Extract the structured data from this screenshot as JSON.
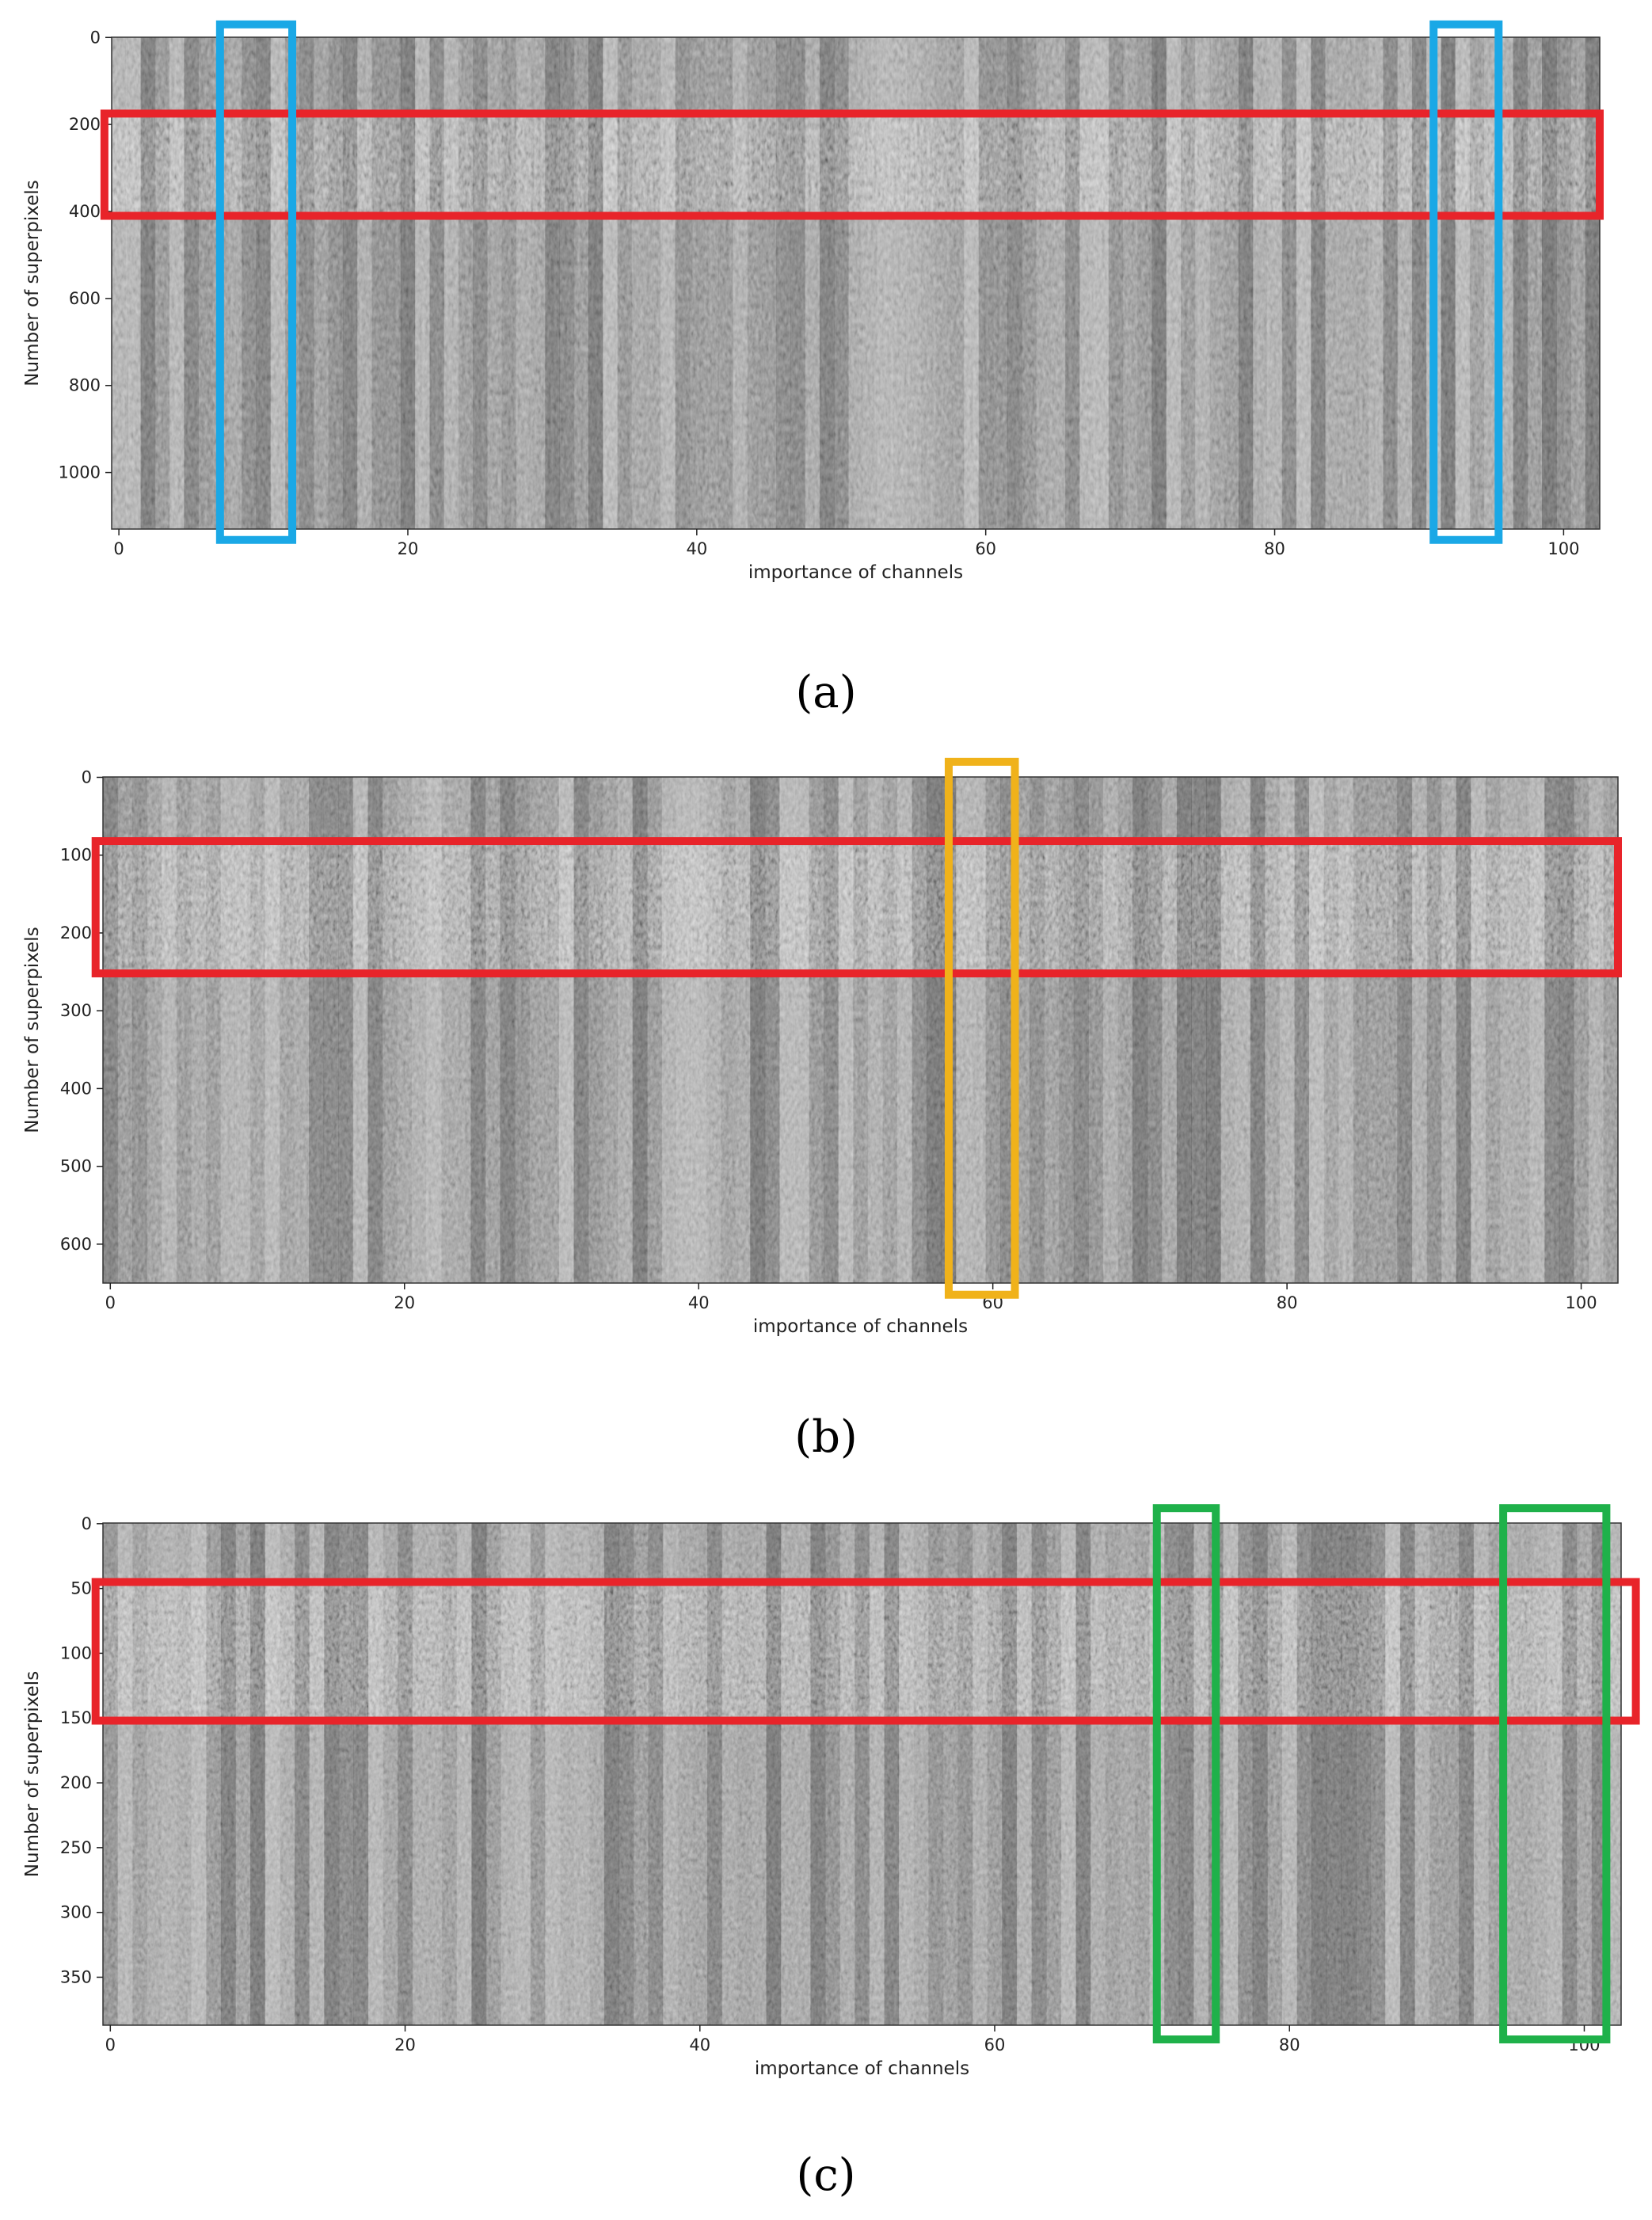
{
  "chart_data": [
    {
      "type": "heatmap",
      "panel": "(a)",
      "xlabel": "importance of channels",
      "ylabel": "Number of superpixels",
      "xticks": [
        0,
        20,
        40,
        60,
        80,
        100
      ],
      "yticks": [
        0,
        200,
        400,
        600,
        800,
        1000
      ],
      "xlim": [
        -0.5,
        102.5
      ],
      "ylim": [
        1130,
        -0.5
      ],
      "colormap": "gray",
      "highlights": [
        {
          "color": "#e8242a",
          "x": [
            -1,
            102.5
          ],
          "y": [
            175,
            410
          ]
        },
        {
          "color": "#1aa8e6",
          "x": [
            7,
            12
          ],
          "y": [
            -30,
            1155
          ]
        },
        {
          "color": "#1aa8e6",
          "x": [
            91,
            95.5
          ],
          "y": [
            -30,
            1155
          ]
        }
      ]
    },
    {
      "type": "heatmap",
      "panel": "(b)",
      "xlabel": "importance of channels",
      "ylabel": "Number of superpixels",
      "xticks": [
        0,
        20,
        40,
        60,
        80,
        100
      ],
      "yticks": [
        0,
        100,
        200,
        300,
        400,
        500,
        600
      ],
      "xlim": [
        -0.5,
        102.5
      ],
      "ylim": [
        650,
        -0.5
      ],
      "colormap": "gray",
      "highlights": [
        {
          "color": "#e8242a",
          "x": [
            -1,
            102.5
          ],
          "y": [
            82,
            252
          ]
        },
        {
          "color": "#f0b21a",
          "x": [
            57,
            61.5
          ],
          "y": [
            -20,
            665
          ]
        }
      ]
    },
    {
      "type": "heatmap",
      "panel": "(c)",
      "xlabel": "importance of channels",
      "ylabel": "Number of superpixels",
      "xticks": [
        0,
        20,
        40,
        60,
        80,
        100
      ],
      "yticks": [
        0,
        50,
        100,
        150,
        200,
        250,
        300,
        350
      ],
      "xlim": [
        -0.5,
        102.5
      ],
      "ylim": [
        387,
        -0.5
      ],
      "colormap": "gray",
      "highlights": [
        {
          "color": "#e8242a",
          "x": [
            -1,
            103.5
          ],
          "y": [
            45,
            152
          ]
        },
        {
          "color": "#1fb14a",
          "x": [
            71,
            75
          ],
          "y": [
            -12,
            398
          ]
        },
        {
          "color": "#1fb14a",
          "x": [
            94.5,
            101.5
          ],
          "y": [
            -12,
            398
          ]
        }
      ]
    }
  ]
}
